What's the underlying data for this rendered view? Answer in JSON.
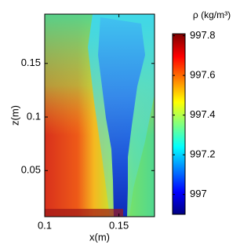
{
  "chart_data": {
    "type": "heatmap",
    "xlabel": "x(m)",
    "ylabel": "z(m)",
    "colorbar_label": "ρ (kg/m³)",
    "xlim": [
      0.1,
      0.174
    ],
    "xticks": [
      0.1,
      0.15
    ],
    "ylim": [
      0.007,
      0.196
    ],
    "yticks": [
      0.05,
      0.1,
      0.15
    ],
    "clim": [
      996.9,
      997.81
    ],
    "cticks": [
      997,
      997.2,
      997.4,
      997.6,
      997.8
    ],
    "colormap": "jet"
  }
}
